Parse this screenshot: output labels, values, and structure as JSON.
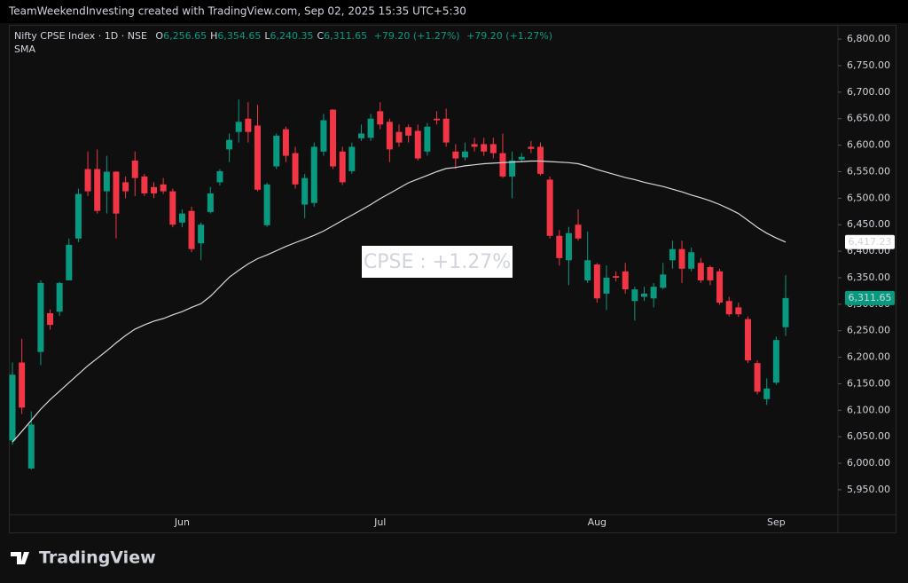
{
  "header": {
    "text": "TeamWeekendInvesting created with TradingView.com, Sep 02, 2025 15:35 UTC+5:30"
  },
  "footer": {
    "logo": "TradingView"
  },
  "chart_data": {
    "type": "candlestick",
    "symbol": "Nifty CPSE Index · 1D · NSE",
    "ohlc": [
      {
        "key": "O",
        "label": "6,256.65"
      },
      {
        "key": "H",
        "label": "6,354.65"
      },
      {
        "key": "L",
        "label": "6,240.35"
      },
      {
        "key": "C",
        "label": "6,311.65"
      }
    ],
    "change": "+79.20 (+1.27%)",
    "annotation": "CPSE : +1.27%",
    "categories": [
      null,
      null,
      null,
      null,
      null,
      null,
      null,
      null,
      null,
      null,
      null,
      null,
      null,
      null,
      null,
      null,
      null,
      null,
      "Jun",
      null,
      null,
      null,
      null,
      null,
      null,
      null,
      null,
      null,
      null,
      null,
      null,
      null,
      null,
      null,
      null,
      null,
      null,
      null,
      null,
      "Jul",
      null,
      null,
      null,
      null,
      null,
      null,
      null,
      null,
      null,
      null,
      null,
      null,
      null,
      null,
      null,
      null,
      null,
      null,
      null,
      null,
      null,
      null,
      "Aug",
      null,
      null,
      null,
      null,
      null,
      null,
      null,
      null,
      null,
      null,
      null,
      null,
      null,
      null,
      null,
      null,
      null,
      null,
      "Sep",
      null
    ],
    "candles": {
      "name": "Nifty CPSE Index",
      "up_color": "#089981",
      "down_color": "#f23645",
      "last_label": "6,311.65",
      "open": [
        6043,
        6190,
        5990,
        6210,
        6283,
        6286,
        6345,
        6424,
        6555,
        6555,
        6513,
        6550,
        6530,
        6571,
        6541,
        6521,
        6526,
        6513,
        6454,
        6476,
        6415,
        6474,
        6530,
        6592,
        6625,
        6650,
        6637,
        6449,
        6560,
        6630,
        6585,
        6488,
        6491,
        6588,
        6667,
        6588,
        6551,
        6613,
        6614,
        6664,
        6644,
        6625,
        6634,
        6627,
        6588,
        6650,
        6650,
        6588,
        6577,
        6602,
        6602,
        6602,
        6585,
        6541,
        6573,
        6597,
        6597,
        6535,
        6429,
        6383,
        6450,
        6345,
        6375,
        6320,
        6353,
        6362,
        6306,
        6314,
        6311,
        6331,
        6383,
        6404,
        6367,
        6378,
        6370,
        6362,
        6306,
        6294,
        6272,
        6189,
        6121,
        6152,
        6256.65
      ],
      "high": [
        6190,
        6235,
        6098,
        6345,
        6290,
        6342,
        6424,
        6518,
        6588,
        6592,
        6580,
        6551,
        6541,
        6588,
        6546,
        6530,
        6538,
        6518,
        6479,
        6484,
        6454,
        6521,
        6555,
        6622,
        6686,
        6681,
        6676,
        6529,
        6622,
        6635,
        6597,
        6546,
        6605,
        6659,
        6668,
        6597,
        6605,
        6639,
        6659,
        6681,
        6650,
        6639,
        6639,
        6639,
        6642,
        6664,
        6669,
        6602,
        6605,
        6614,
        6614,
        6614,
        6622,
        6588,
        6585,
        6608,
        6605,
        6541,
        6440,
        6446,
        6479,
        6437,
        6378,
        6373,
        6362,
        6378,
        6333,
        6333,
        6340,
        6378,
        6420,
        6420,
        6407,
        6387,
        6373,
        6367,
        6314,
        6303,
        6277,
        6194,
        6160,
        6239,
        6354.65
      ],
      "low": [
        6035,
        6093,
        5988,
        6185,
        6252,
        6278,
        6345,
        6417,
        6504,
        6471,
        6471,
        6424,
        6500,
        6504,
        6504,
        6500,
        6508,
        6445,
        6445,
        6398,
        6383,
        6471,
        6524,
        6568,
        6605,
        6605,
        6513,
        6446,
        6555,
        6568,
        6518,
        6462,
        6484,
        6580,
        6555,
        6525,
        6546,
        6608,
        6608,
        6630,
        6568,
        6597,
        6605,
        6571,
        6580,
        6639,
        6597,
        6555,
        6571,
        6588,
        6580,
        6575,
        6538,
        6500,
        6568,
        6585,
        6543,
        6424,
        6373,
        6336,
        6420,
        6340,
        6303,
        6289,
        6343,
        6320,
        6269,
        6306,
        6294,
        6328,
        6367,
        6340,
        6362,
        6340,
        6336,
        6299,
        6277,
        6276,
        6189,
        6130,
        6110,
        6148,
        6240.35
      ],
      "close": [
        6167,
        6105,
        6073,
        6340,
        6261,
        6340,
        6412,
        6508,
        6513,
        6476,
        6550,
        6471,
        6513,
        6538,
        6509,
        6509,
        6513,
        6450,
        6471,
        6404,
        6450,
        6509,
        6551,
        6610,
        6644,
        6625,
        6516,
        6526,
        6618,
        6580,
        6526,
        6538,
        6597,
        6647,
        6560,
        6530,
        6597,
        6622,
        6650,
        6639,
        6592,
        6605,
        6618,
        6575,
        6635,
        6647,
        6605,
        6575,
        6588,
        6597,
        6588,
        6585,
        6541,
        6571,
        6578,
        6593,
        6546,
        6429,
        6387,
        6434,
        6424,
        6383,
        6311,
        6350,
        6350,
        6328,
        6328,
        6320,
        6333,
        6356,
        6404,
        6367,
        6398,
        6345,
        6345,
        6303,
        6281,
        6281,
        6194,
        6135,
        6141,
        6232.45,
        6311.65
      ]
    },
    "sma": {
      "name": "SMA",
      "color": "#d9d9d9",
      "last_label": "6,417.23",
      "values": [
        6040,
        6060,
        6081,
        6102,
        6120,
        6136,
        6152,
        6168,
        6184,
        6198,
        6212,
        6227,
        6241,
        6253,
        6261,
        6268,
        6273,
        6280,
        6286,
        6294,
        6301,
        6315,
        6333,
        6351,
        6364,
        6376,
        6386,
        6393,
        6401,
        6409,
        6416,
        6423,
        6430,
        6438,
        6448,
        6458,
        6468,
        6478,
        6488,
        6499,
        6509,
        6519,
        6529,
        6536,
        6543,
        6550,
        6556,
        6558,
        6561,
        6563,
        6565,
        6566,
        6567,
        6568,
        6569,
        6570,
        6570,
        6569,
        6568,
        6567,
        6565,
        6560,
        6554,
        6549,
        6544,
        6539,
        6535,
        6530,
        6526,
        6522,
        6517,
        6512,
        6506,
        6501,
        6495,
        6488,
        6480,
        6471,
        6458,
        6445,
        6434,
        6425,
        6417.23
      ]
    },
    "ylim": [
      5903,
      6827
    ],
    "yticks": [
      {
        "value": 5950,
        "label": "5,950.00"
      },
      {
        "value": 6000,
        "label": "6,000.00"
      },
      {
        "value": 6050,
        "label": "6,050.00"
      },
      {
        "value": 6100,
        "label": "6,100.00"
      },
      {
        "value": 6150,
        "label": "6,150.00"
      },
      {
        "value": 6200,
        "label": "6,200.00"
      },
      {
        "value": 6250,
        "label": "6,250.00"
      },
      {
        "value": 6300,
        "label": "6,300.00"
      },
      {
        "value": 6350,
        "label": "6,350.00"
      },
      {
        "value": 6400,
        "label": "6,400.00"
      },
      {
        "value": 6450,
        "label": "6,450.00"
      },
      {
        "value": 6500,
        "label": "6,500.00"
      },
      {
        "value": 6550,
        "label": "6,550.00"
      },
      {
        "value": 6600,
        "label": "6,600.00"
      },
      {
        "value": 6650,
        "label": "6,650.00"
      },
      {
        "value": 6700,
        "label": "6,700.00"
      },
      {
        "value": 6750,
        "label": "6,750.00"
      },
      {
        "value": 6800,
        "label": "6,800.00"
      }
    ],
    "grid": false
  }
}
